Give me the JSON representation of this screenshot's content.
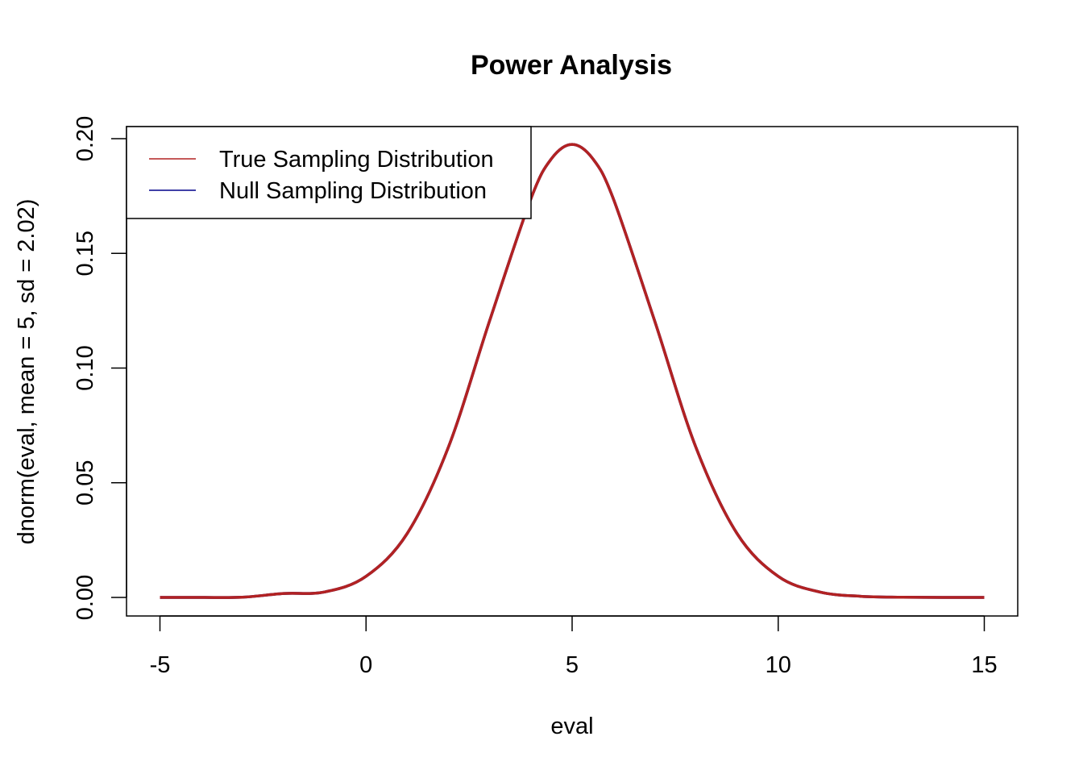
{
  "chart_data": {
    "type": "line",
    "title": "Power Analysis",
    "xlabel": "eval",
    "ylabel": "dnorm(eval, mean = 5, sd = 2.02)",
    "xlim": [
      -5,
      15
    ],
    "ylim": [
      0,
      0.2
    ],
    "x_ticks": [
      -5,
      0,
      5,
      10,
      15
    ],
    "x_tick_labels": [
      "-5",
      "0",
      "5",
      "10",
      "15"
    ],
    "y_ticks": [
      0,
      0.05,
      0.1,
      0.15,
      0.2
    ],
    "y_tick_labels": [
      "0.00",
      "0.05",
      "0.10",
      "0.15",
      "0.20"
    ],
    "grid": false,
    "legend_position": "top-left",
    "series": [
      {
        "name": "True Sampling Distribution",
        "color": "#b22222",
        "x": [
          -5,
          -4,
          -3,
          -2,
          -1,
          0,
          1,
          2,
          3,
          4,
          4.5,
          5,
          5.5,
          6,
          7,
          8,
          9,
          10,
          11,
          12,
          13,
          14,
          15
        ],
        "values": [
          0.0,
          0.0,
          0.0001,
          0.0017,
          0.0024,
          0.0092,
          0.0279,
          0.0656,
          0.1207,
          0.1738,
          0.1913,
          0.1975,
          0.1913,
          0.1738,
          0.1207,
          0.0656,
          0.0279,
          0.0092,
          0.0024,
          0.0005,
          0.0001,
          0.0,
          0.0
        ]
      },
      {
        "name": "Null Sampling Distribution",
        "color": "#00008b",
        "x": [
          -5,
          -4,
          -3,
          -2,
          -1,
          0,
          1,
          2,
          3,
          4,
          4.5,
          5,
          5.5,
          6,
          7,
          8,
          9,
          10,
          11,
          12,
          13,
          14,
          15
        ],
        "values": [
          0.0,
          0.0,
          0.0001,
          0.0017,
          0.0024,
          0.0092,
          0.0279,
          0.0656,
          0.1207,
          0.1738,
          0.1913,
          0.1975,
          0.1913,
          0.1738,
          0.1207,
          0.0656,
          0.0279,
          0.0092,
          0.0024,
          0.0005,
          0.0001,
          0.0,
          0.0
        ]
      }
    ]
  }
}
